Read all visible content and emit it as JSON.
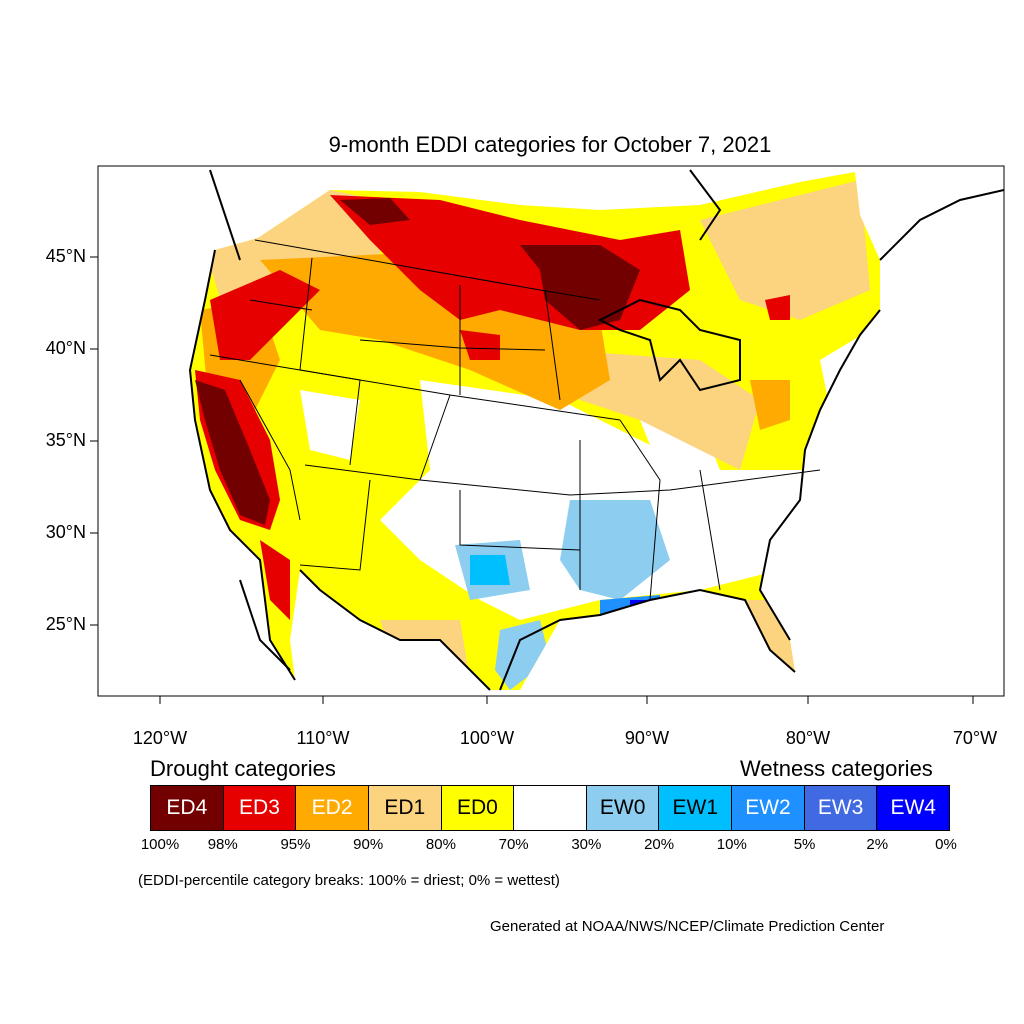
{
  "title": "9-month EDDI categories for October 7, 2021",
  "axes": {
    "lat_labels": [
      "45°N",
      "40°N",
      "35°N",
      "30°N",
      "25°N"
    ],
    "lon_labels": [
      "120°W",
      "110°W",
      "100°W",
      "90°W",
      "80°W",
      "70°W"
    ]
  },
  "legend": {
    "drought_heading": "Drought categories",
    "wetness_heading": "Wetness categories",
    "categories": [
      {
        "label": "ED4",
        "color": "#730000",
        "text_color": "#ffffff"
      },
      {
        "label": "ED3",
        "color": "#e60000",
        "text_color": "#ffffff"
      },
      {
        "label": "ED2",
        "color": "#ffaa00",
        "text_color": "#ffffff"
      },
      {
        "label": "ED1",
        "color": "#fcd37f",
        "text_color": "#000000"
      },
      {
        "label": "ED0",
        "color": "#ffff00",
        "text_color": "#000000"
      },
      {
        "label": "",
        "color": "#ffffff",
        "text_color": "#000000"
      },
      {
        "label": "EW0",
        "color": "#8ccdf0",
        "text_color": "#000000"
      },
      {
        "label": "EW1",
        "color": "#00bfff",
        "text_color": "#000000"
      },
      {
        "label": "EW2",
        "color": "#1e90ff",
        "text_color": "#ffffff"
      },
      {
        "label": "EW3",
        "color": "#4169e1",
        "text_color": "#ffffff"
      },
      {
        "label": "EW4",
        "color": "#0000ff",
        "text_color": "#ffffff"
      }
    ],
    "percentiles": [
      "100%",
      "98%",
      "95%",
      "90%",
      "80%",
      "70%",
      "30%",
      "20%",
      "10%",
      "5%",
      "2%",
      "0%"
    ]
  },
  "note": "(EDDI-percentile category breaks: 100% = driest; 0% = wettest)",
  "credit": "Generated at NOAA/NWS/NCEP/Climate Prediction Center"
}
